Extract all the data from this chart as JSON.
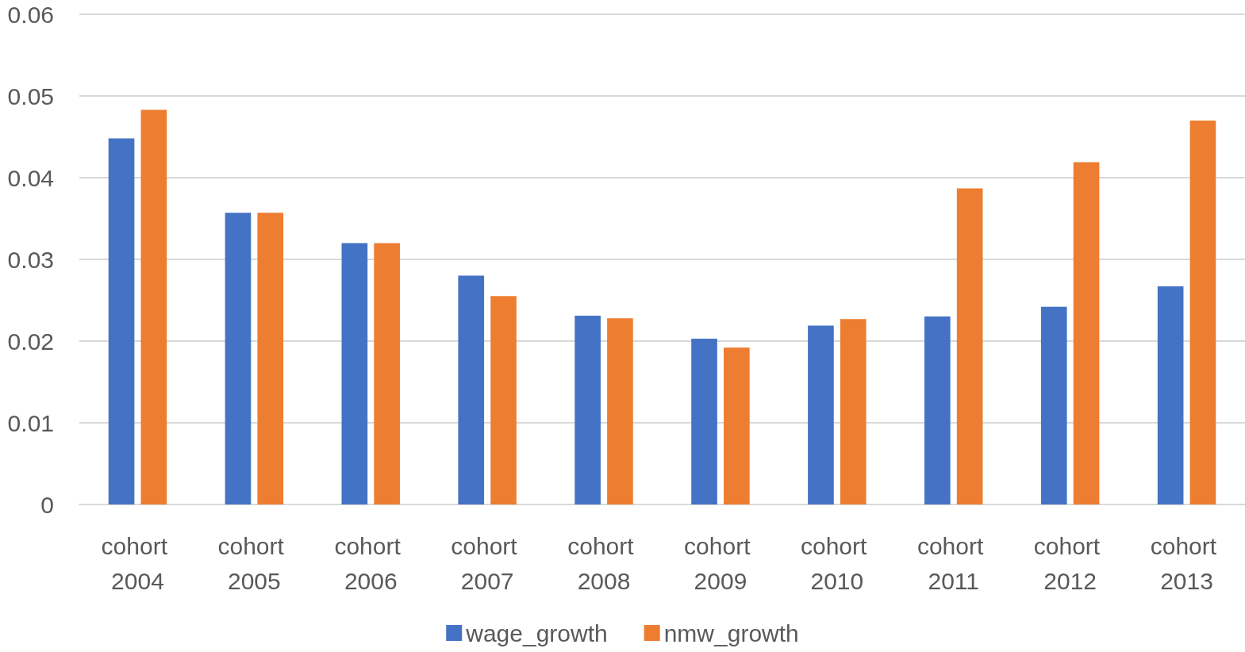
{
  "chart_data": {
    "type": "bar",
    "categories": [
      "cohort 2004",
      "cohort 2005",
      "cohort 2006",
      "cohort 2007",
      "cohort 2008",
      "cohort 2009",
      "cohort 2010",
      "cohort 2011",
      "cohort 2012",
      "cohort 2013"
    ],
    "series": [
      {
        "name": "wage_growth",
        "color": "#4472c4",
        "values": [
          0.0448,
          0.0357,
          0.032,
          0.028,
          0.0231,
          0.0203,
          0.0219,
          0.023,
          0.0242,
          0.0267
        ]
      },
      {
        "name": "nmw_growth",
        "color": "#ed7d31",
        "values": [
          0.0483,
          0.0357,
          0.032,
          0.0255,
          0.0228,
          0.0192,
          0.0227,
          0.0387,
          0.0419,
          0.047
        ]
      }
    ],
    "ylim": [
      0,
      0.06
    ],
    "yticks": [
      0,
      0.01,
      0.02,
      0.03,
      0.04,
      0.05,
      0.06
    ],
    "grid": "y",
    "legend": "bottom"
  }
}
